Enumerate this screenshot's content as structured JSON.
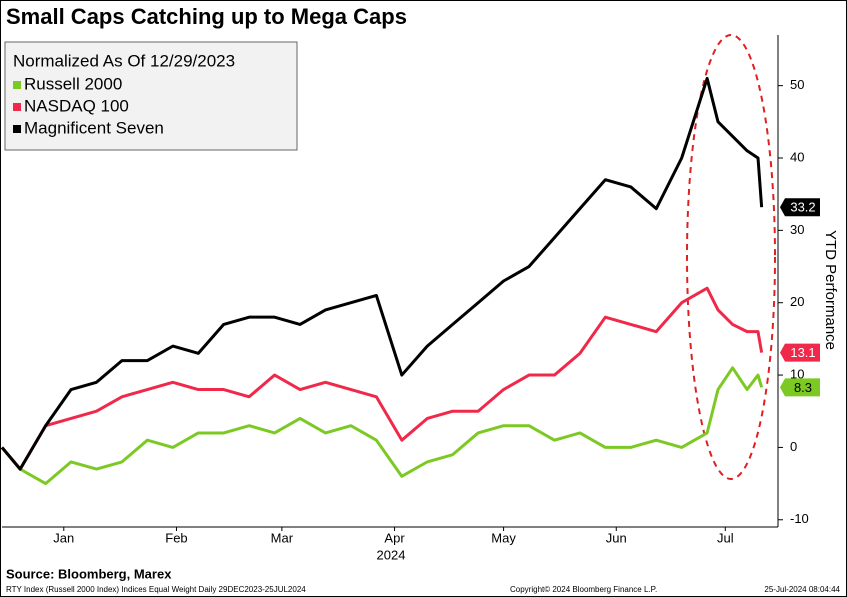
{
  "chart_data": {
    "type": "line",
    "title": "Small Caps Catching up to Mega Caps",
    "legend_title": "Normalized As Of 12/29/2023",
    "y_label": "YTD Performance",
    "x_label": "2024",
    "source": "Source: Bloomberg, Marex",
    "footer_left": "RTY Index (Russell 2000 Index) Indices Equal Weight   Daily 29DEC2023-25JUL2024",
    "footer_center": "Copyright© 2024 Bloomberg Finance L.P.",
    "footer_right": "25-Jul-2024 08:04:44",
    "x": [
      0,
      5,
      12,
      19,
      26,
      33,
      40,
      47,
      54,
      61,
      68,
      75,
      82,
      89,
      96,
      103,
      110,
      117,
      124,
      131,
      138,
      145,
      152,
      159,
      166,
      173,
      180,
      187,
      194,
      197,
      201,
      205,
      208,
      209
    ],
    "xlim": [
      0,
      213.5
    ],
    "xticks": [
      {
        "value": 17,
        "label": "Jan"
      },
      {
        "value": 48,
        "label": "Feb"
      },
      {
        "value": 77,
        "label": "Mar"
      },
      {
        "value": 108,
        "label": "Apr"
      },
      {
        "value": 138,
        "label": "May"
      },
      {
        "value": 169,
        "label": "Jun"
      },
      {
        "value": 199,
        "label": "Jul"
      }
    ],
    "ylim": [
      -11,
      57
    ],
    "yticks": [
      -10,
      0,
      10,
      20,
      30,
      40,
      50
    ],
    "legend": "upper left",
    "series": [
      {
        "name": "Russell 2000",
        "color": "#7cc924",
        "values": [
          0,
          -3,
          -5,
          -2,
          -3,
          -2,
          1,
          0,
          2,
          2,
          3,
          2,
          4,
          2,
          3,
          1,
          -4,
          -2,
          -1,
          2,
          3,
          3,
          1,
          2,
          0,
          0,
          1,
          0,
          2,
          8,
          11,
          8,
          10,
          8.3
        ]
      },
      {
        "name": "NASDAQ 100",
        "color": "#f0284a",
        "values": [
          0,
          -3,
          3,
          4,
          5,
          7,
          8,
          9,
          8,
          8,
          7,
          10,
          8,
          9,
          8,
          7,
          1,
          4,
          5,
          5,
          8,
          10,
          10,
          13,
          18,
          17,
          16,
          20,
          22,
          19,
          17,
          16,
          16,
          13.1
        ]
      },
      {
        "name": "Magnificent Seven",
        "color": "#000000",
        "values": [
          0,
          -3,
          3,
          8,
          9,
          12,
          12,
          14,
          13,
          17,
          18,
          18,
          17,
          19,
          20,
          21,
          10,
          14,
          17,
          20,
          23,
          25,
          29,
          33,
          37,
          36,
          33,
          40,
          51,
          45,
          43,
          41,
          40,
          33.2
        ]
      }
    ]
  }
}
